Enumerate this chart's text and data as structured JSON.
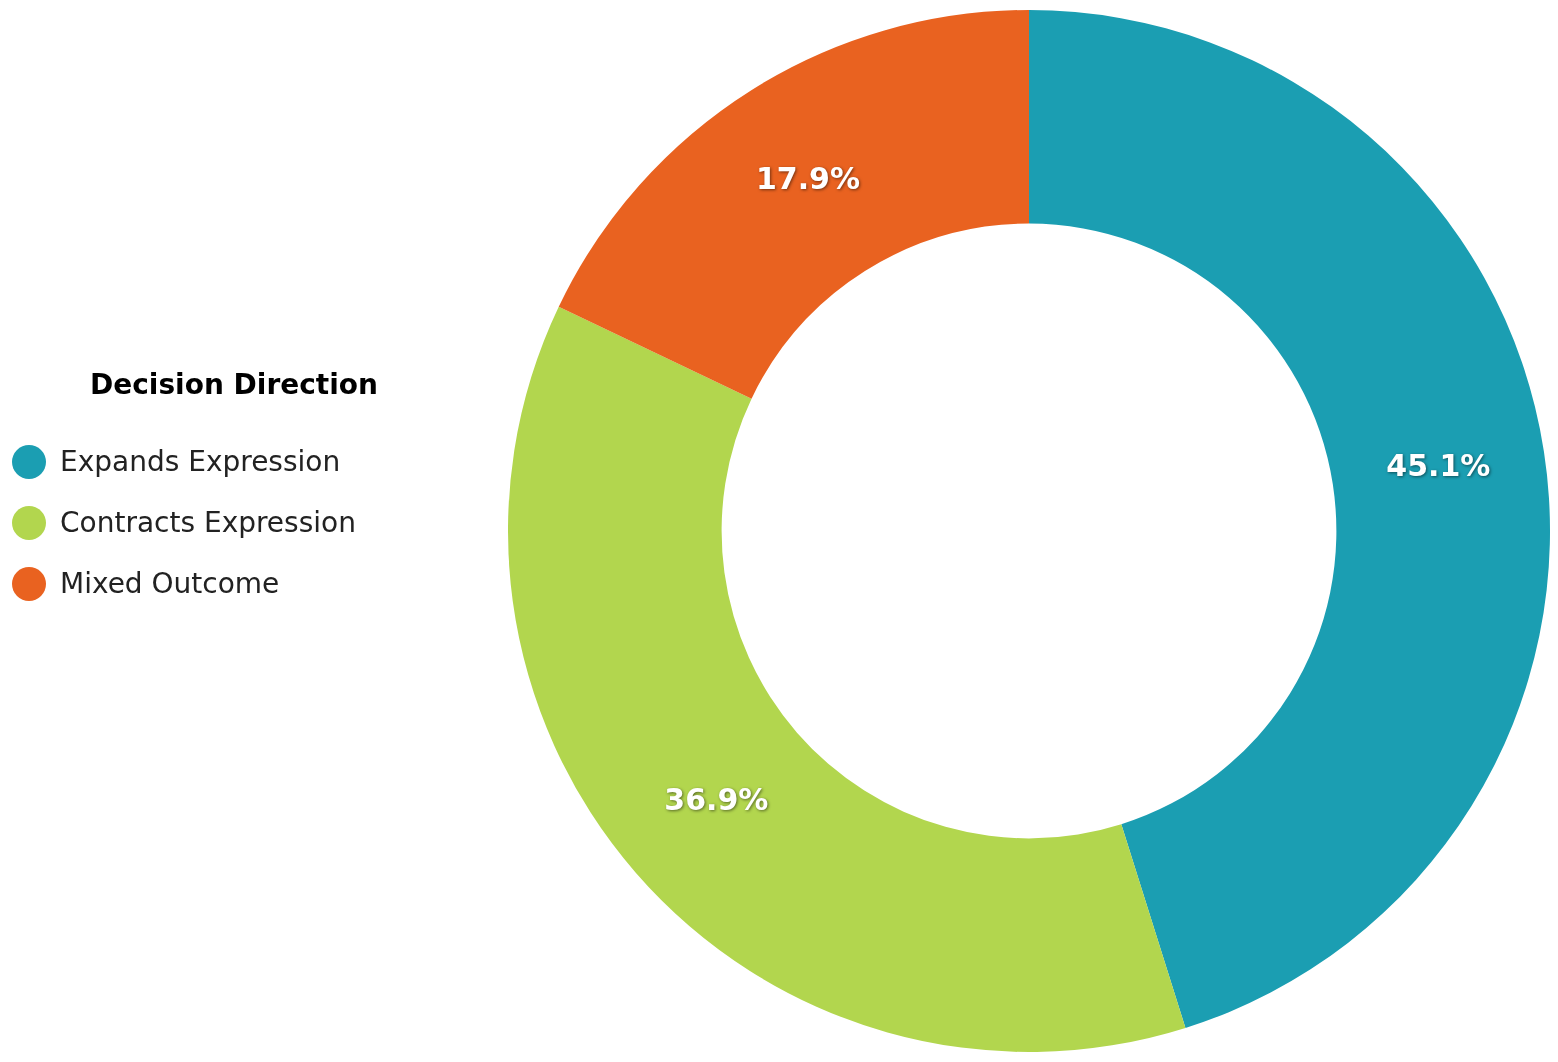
{
  "chart_data": {
    "type": "donut",
    "legend_title": "Decision Direction",
    "legend": "left",
    "categories": [
      "Expands Expression",
      "Contracts Expression",
      "Mixed Outcome"
    ],
    "values": [
      45.1,
      36.9,
      17.9
    ],
    "colors": [
      "#1b9eb2",
      "#b2d64e",
      "#e96220"
    ],
    "value_labels": [
      "45.1%",
      "36.9%",
      "17.9%"
    ]
  }
}
